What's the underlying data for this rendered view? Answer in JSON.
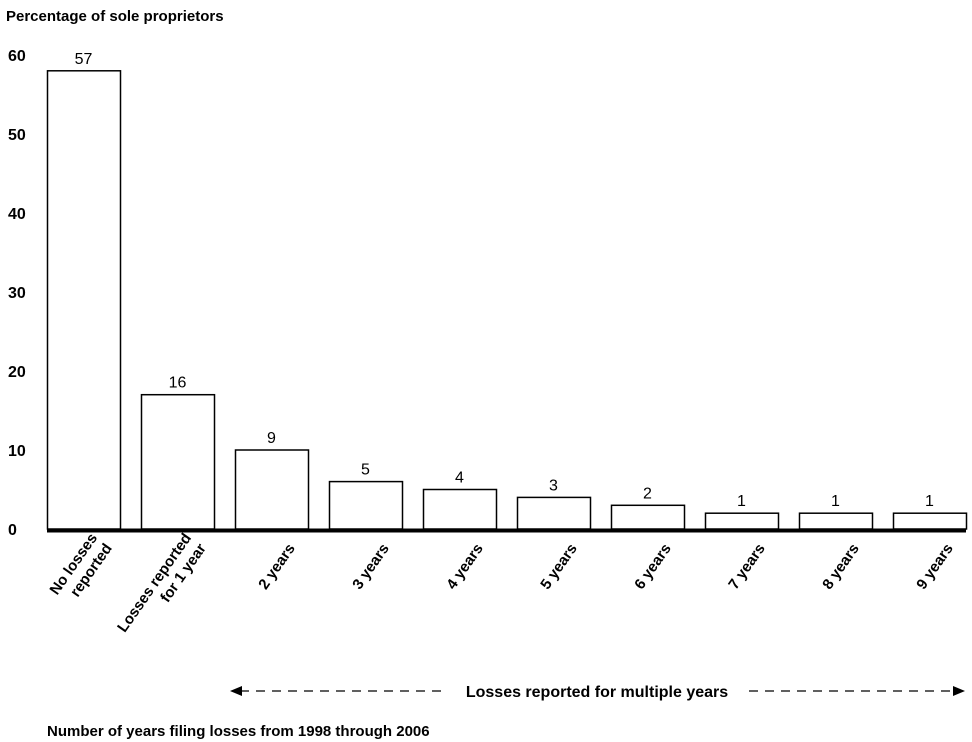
{
  "chart_data": {
    "type": "bar",
    "title": "",
    "ylabel": "Percentage of sole proprietors",
    "xlabel": "Number of years filing losses from 1998 through 2006",
    "ylim": [
      0,
      60
    ],
    "yticks": [
      "0",
      "10",
      "20",
      "30",
      "40",
      "50",
      "60"
    ],
    "grid": false,
    "legend": "none",
    "categories": [
      [
        "No losses",
        "reported"
      ],
      [
        "Losses reported",
        "for 1 year"
      ],
      [
        "2 years"
      ],
      [
        "3 years"
      ],
      [
        "4 years"
      ],
      [
        "5 years"
      ],
      [
        "6 years"
      ],
      [
        "7 years"
      ],
      [
        "8 years"
      ],
      [
        "9 years"
      ]
    ],
    "values": [
      57,
      16,
      9,
      5,
      4,
      3,
      2,
      1,
      1,
      1
    ],
    "data_labels": [
      "57",
      "16",
      "9",
      "5",
      "4",
      "3",
      "2",
      "1",
      "1",
      "1"
    ],
    "annotation": {
      "text": "Losses reported for multiple years",
      "spans_categories": [
        "2 years",
        "9 years"
      ]
    }
  },
  "colors": {
    "bar_fill": "#ffffff",
    "bar_stroke": "#000000",
    "axis": "#000000",
    "text": "#000000"
  }
}
